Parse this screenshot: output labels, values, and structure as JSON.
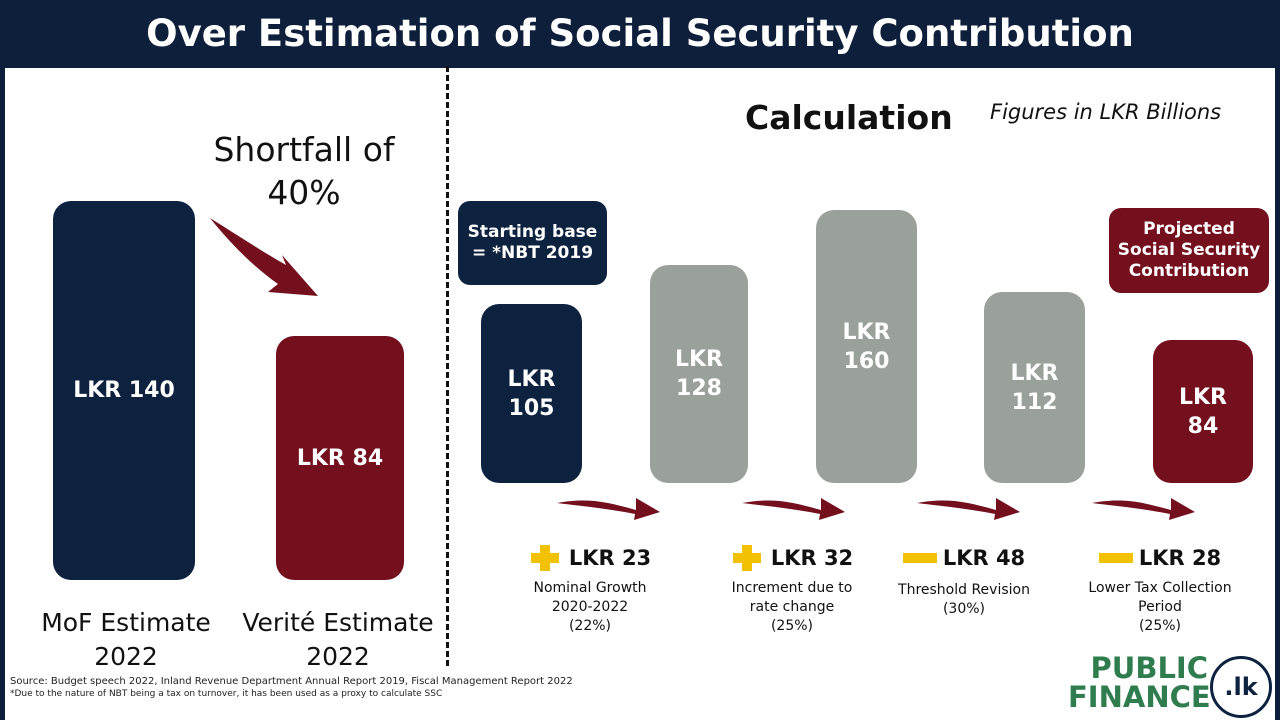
{
  "title": "Over Estimation of Social Security Contribution",
  "left": {
    "shortfall_text_1": "Shortfall of",
    "shortfall_text_2": "40%",
    "bars": [
      {
        "label": "LKR 140",
        "value": 140,
        "name_1": "MoF Estimate",
        "name_2": "2022"
      },
      {
        "label": "LKR 84",
        "value": 84,
        "name_1": "Verité Estimate",
        "name_2": "2022"
      }
    ]
  },
  "right": {
    "title": "Calculation",
    "units_note": "Figures in LKR Billions",
    "start_box": {
      "line1": "Starting base",
      "line2": "= *NBT 2019"
    },
    "end_box": {
      "line1": "Projected",
      "line2": "Social Security",
      "line3": "Contribution"
    },
    "bars": [
      {
        "line1": "LKR",
        "line2": "105",
        "value": 105
      },
      {
        "line1": "LKR",
        "line2": "128",
        "value": 128
      },
      {
        "line1": "LKR",
        "line2": "160",
        "value": 160
      },
      {
        "line1": "LKR",
        "line2": "112",
        "value": 112
      },
      {
        "line1": "LKR",
        "line2": "84",
        "value": 84
      }
    ],
    "steps": [
      {
        "sign": "plus",
        "amount": "LKR 23",
        "desc1": "Nominal Growth",
        "desc2": "2020-2022",
        "desc3": "(22%)"
      },
      {
        "sign": "plus",
        "amount": "LKR 32",
        "desc1": "Increment due to",
        "desc2": "rate change",
        "desc3": "(25%)"
      },
      {
        "sign": "minus",
        "amount": "LKR 48",
        "desc1": "Threshold Revision",
        "desc2": "(30%)",
        "desc3": ""
      },
      {
        "sign": "minus",
        "amount": "LKR 28",
        "desc1": "Lower Tax Collection",
        "desc2": "Period",
        "desc3": "(25%)"
      }
    ]
  },
  "source_line1": "Source: Budget speech 2022, Inland Revenue Department Annual Report 2019, Fiscal Management Report 2022",
  "source_line2": "*Due to the nature of NBT being a tax on turnover, it has been used as a proxy to calculate SSC",
  "logo": {
    "line1": "PUBLIC",
    "line2": "FINANCE",
    "badge": ".lk"
  },
  "colors": {
    "navy": "#0d223f",
    "maroon": "#74101e",
    "grey": "#9aa19a",
    "accent": "#f2c200",
    "logo_green": "#2f7d4f"
  },
  "chart_data": [
    {
      "type": "bar",
      "categories": [
        "MoF Estimate 2022",
        "Verité Estimate 2022"
      ],
      "values": [
        140,
        84
      ],
      "title": ""
    },
    {
      "type": "bar",
      "title": "Calculation",
      "categories": [
        "Starting base = *NBT 2019",
        "Nominal Growth 2020-2022 (22%)",
        "Increment due to rate change (25%)",
        "Threshold Revision (30%)",
        "Projected Social Security Contribution"
      ],
      "values": [
        105,
        128,
        160,
        112,
        84
      ],
      "changes": [
        23,
        32,
        -48,
        -28
      ]
    }
  ]
}
